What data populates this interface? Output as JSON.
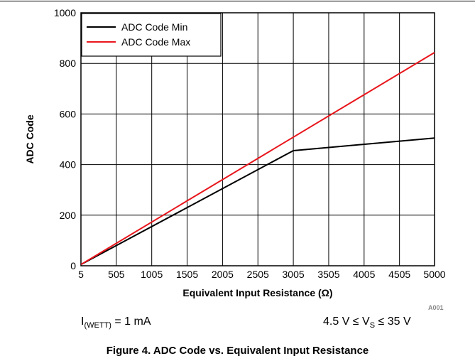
{
  "chart_data": {
    "type": "line",
    "xlabel": "Equivalent Input Resistance (Ω)",
    "ylabel": "ADC Code",
    "x_ticks": [
      5,
      505,
      1005,
      1505,
      2005,
      2505,
      3005,
      3505,
      4005,
      4505,
      5000
    ],
    "y_ticks": [
      0,
      200,
      400,
      600,
      800,
      1000
    ],
    "xlim": [
      5,
      5000
    ],
    "ylim": [
      0,
      1000
    ],
    "grid": true,
    "legend_position": "top-left",
    "series": [
      {
        "name": "ADC Code Min",
        "color": "#000000",
        "x": [
          5,
          3005,
          5000
        ],
        "y": [
          5,
          455,
          505
        ]
      },
      {
        "name": "ADC Code Max",
        "color": "#e8161c",
        "x": [
          5,
          5000
        ],
        "y": [
          5,
          843
        ]
      }
    ]
  },
  "conditions": {
    "current_main": "I",
    "current_sub": "(WETT)",
    "current_rest": " = 1 mA",
    "voltage_pre": "4.5 V ≤ V",
    "voltage_sub": "S",
    "voltage_post": " ≤ 35 V"
  },
  "caption": "Figure 4. ADC Code vs. Equivalent Input Resistance",
  "figure_code": "A001"
}
